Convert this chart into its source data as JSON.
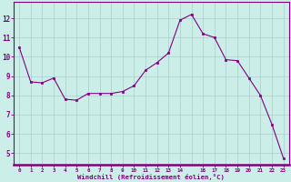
{
  "x": [
    0,
    1,
    2,
    3,
    4,
    5,
    6,
    7,
    8,
    9,
    10,
    11,
    12,
    13,
    14,
    15,
    16,
    17,
    18,
    19,
    20,
    21,
    22,
    23
  ],
  "y": [
    10.5,
    8.7,
    8.65,
    8.9,
    7.8,
    7.75,
    8.1,
    8.1,
    8.1,
    8.2,
    8.5,
    9.3,
    9.7,
    10.2,
    11.9,
    12.2,
    11.2,
    11.0,
    9.85,
    9.8,
    8.9,
    8.0,
    6.5,
    4.75
  ],
  "x_ticks": [
    0,
    1,
    2,
    3,
    4,
    5,
    6,
    7,
    8,
    9,
    10,
    11,
    12,
    13,
    14,
    16,
    17,
    18,
    19,
    20,
    21,
    22,
    23
  ],
  "x_tick_labels": [
    "0",
    "1",
    "2",
    "3",
    "4",
    "5",
    "6",
    "7",
    "8",
    "9",
    "10",
    "11",
    "12",
    "13",
    "14",
    "16",
    "17",
    "18",
    "19",
    "20",
    "21",
    "22",
    "23"
  ],
  "y_ticks": [
    5,
    6,
    7,
    8,
    9,
    10,
    11,
    12
  ],
  "y_tick_labels": [
    "5",
    "6",
    "7",
    "8",
    "9",
    "10",
    "11",
    "12"
  ],
  "ylim": [
    4.4,
    12.85
  ],
  "xlim": [
    -0.5,
    23.5
  ],
  "xlabel": "Windchill (Refroidissement éolien,°C)",
  "line_color": "#800080",
  "bg_color": "#cceee8",
  "grid_color": "#aacccc",
  "spine_color": "#800080",
  "tick_color": "#800080",
  "label_color": "#800080"
}
